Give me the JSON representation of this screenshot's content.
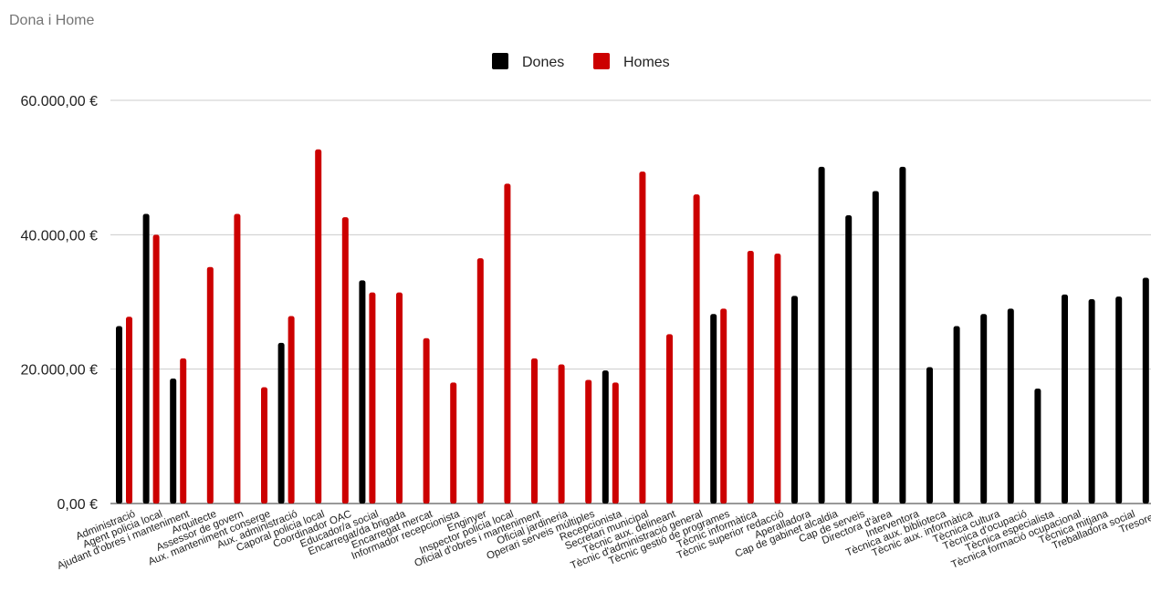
{
  "chart_data": {
    "type": "bar",
    "title": "Dona i Home",
    "xlabel": "",
    "ylabel": "",
    "ylim": [
      0,
      60000
    ],
    "yticks": [
      0,
      20000,
      40000,
      60000
    ],
    "ytick_labels": [
      "0,00 €",
      "20.000,00 €",
      "40.000,00 €",
      "60.000,00 €"
    ],
    "grid": true,
    "legend_position": "top",
    "categories": [
      "Administració",
      "Agent policia local",
      "Ajudant d'obres i manteniment",
      "Arquitecte",
      "Assessor de govern",
      "Aux. manteniment conserge",
      "Aux. administració",
      "Caporal policia local",
      "Coordinador OAC",
      "Educador/a social",
      "Encarregat/da brigada",
      "Encarregat mercat",
      "Informador recepcionista",
      "Enginyer",
      "Inspector policia local",
      "Oficial d'obres i manteniment",
      "Oficial jardineria",
      "Operari serveis múltiples",
      "Recepcionista",
      "Secretari municipal",
      "Tècnic aux. delineant",
      "Tècnic d'administració general",
      "Tècnic gestió de programes",
      "Tècnic informàtica",
      "Tècnic superior redacció",
      "Aperalladora",
      "Cap de gabinet alcaldia",
      "Cap de serveis",
      "Directora d'àrea",
      "Interventora",
      "Tècnica aux. biblioteca",
      "Tècnic aux. informàtica",
      "Tècnica cultura",
      "Tècnica d'ocupació",
      "Tècnica especialista",
      "Tècnica formació ocupacional",
      "Tècnica mitjana",
      "Treballadora social",
      "Tresorera"
    ],
    "series": [
      {
        "name": "Dones",
        "color": "#000000",
        "values": [
          26400,
          43100,
          18600,
          null,
          null,
          null,
          23900,
          null,
          null,
          33200,
          null,
          null,
          null,
          null,
          null,
          null,
          null,
          null,
          19800,
          null,
          null,
          null,
          28200,
          null,
          null,
          30900,
          50100,
          42900,
          46500,
          50100,
          20300,
          26400,
          28200,
          29000,
          17100,
          31100,
          30400,
          30800,
          33600
        ]
      },
      {
        "name": "Homes",
        "color": "#cc0000",
        "values": [
          27800,
          40000,
          21600,
          35200,
          43100,
          17300,
          27900,
          52700,
          42600,
          31400,
          31400,
          24600,
          18000,
          36500,
          47600,
          21600,
          20700,
          18400,
          18000,
          49400,
          25200,
          46000,
          29000,
          37600,
          37200,
          null,
          null,
          null,
          null,
          null,
          null,
          null,
          null,
          null,
          null,
          null,
          null,
          null,
          null
        ]
      }
    ]
  }
}
